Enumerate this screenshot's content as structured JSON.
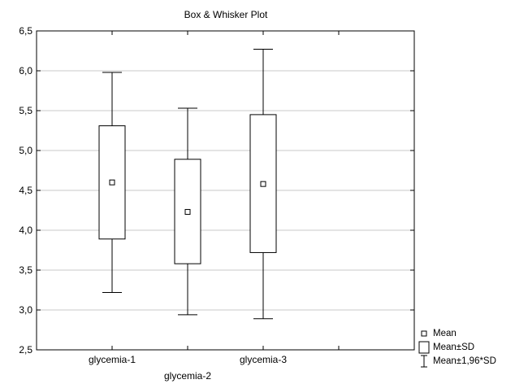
{
  "chart_data": {
    "type": "box",
    "title": "Box & Whisker Plot",
    "xlabel": "",
    "ylabel": "",
    "ylim": [
      2.5,
      6.5
    ],
    "yticks": [
      2.5,
      3.0,
      3.5,
      4.0,
      4.5,
      5.0,
      5.5,
      6.0,
      6.5
    ],
    "ytick_labels": [
      "2,5",
      "3,0",
      "3,5",
      "4,0",
      "4,5",
      "5,0",
      "5,5",
      "6,0",
      "6,5"
    ],
    "grid": true,
    "legend_position": "bottom-right",
    "categories": [
      "glycemia-1",
      "glycemia-2",
      "glycemia-3"
    ],
    "series": [
      {
        "category": "glycemia-1",
        "mean": 4.6,
        "sd_low": 3.89,
        "sd_high": 5.31,
        "ci_low": 3.22,
        "ci_high": 5.98
      },
      {
        "category": "glycemia-2",
        "mean": 4.23,
        "sd_low": 3.58,
        "sd_high": 4.89,
        "ci_low": 2.94,
        "ci_high": 5.53
      },
      {
        "category": "glycemia-3",
        "mean": 4.58,
        "sd_low": 3.72,
        "sd_high": 5.45,
        "ci_low": 2.89,
        "ci_high": 6.27
      }
    ]
  },
  "legend": {
    "mean": "Mean",
    "sd": "Mean±SD",
    "ci": "Mean±1,96*SD"
  }
}
